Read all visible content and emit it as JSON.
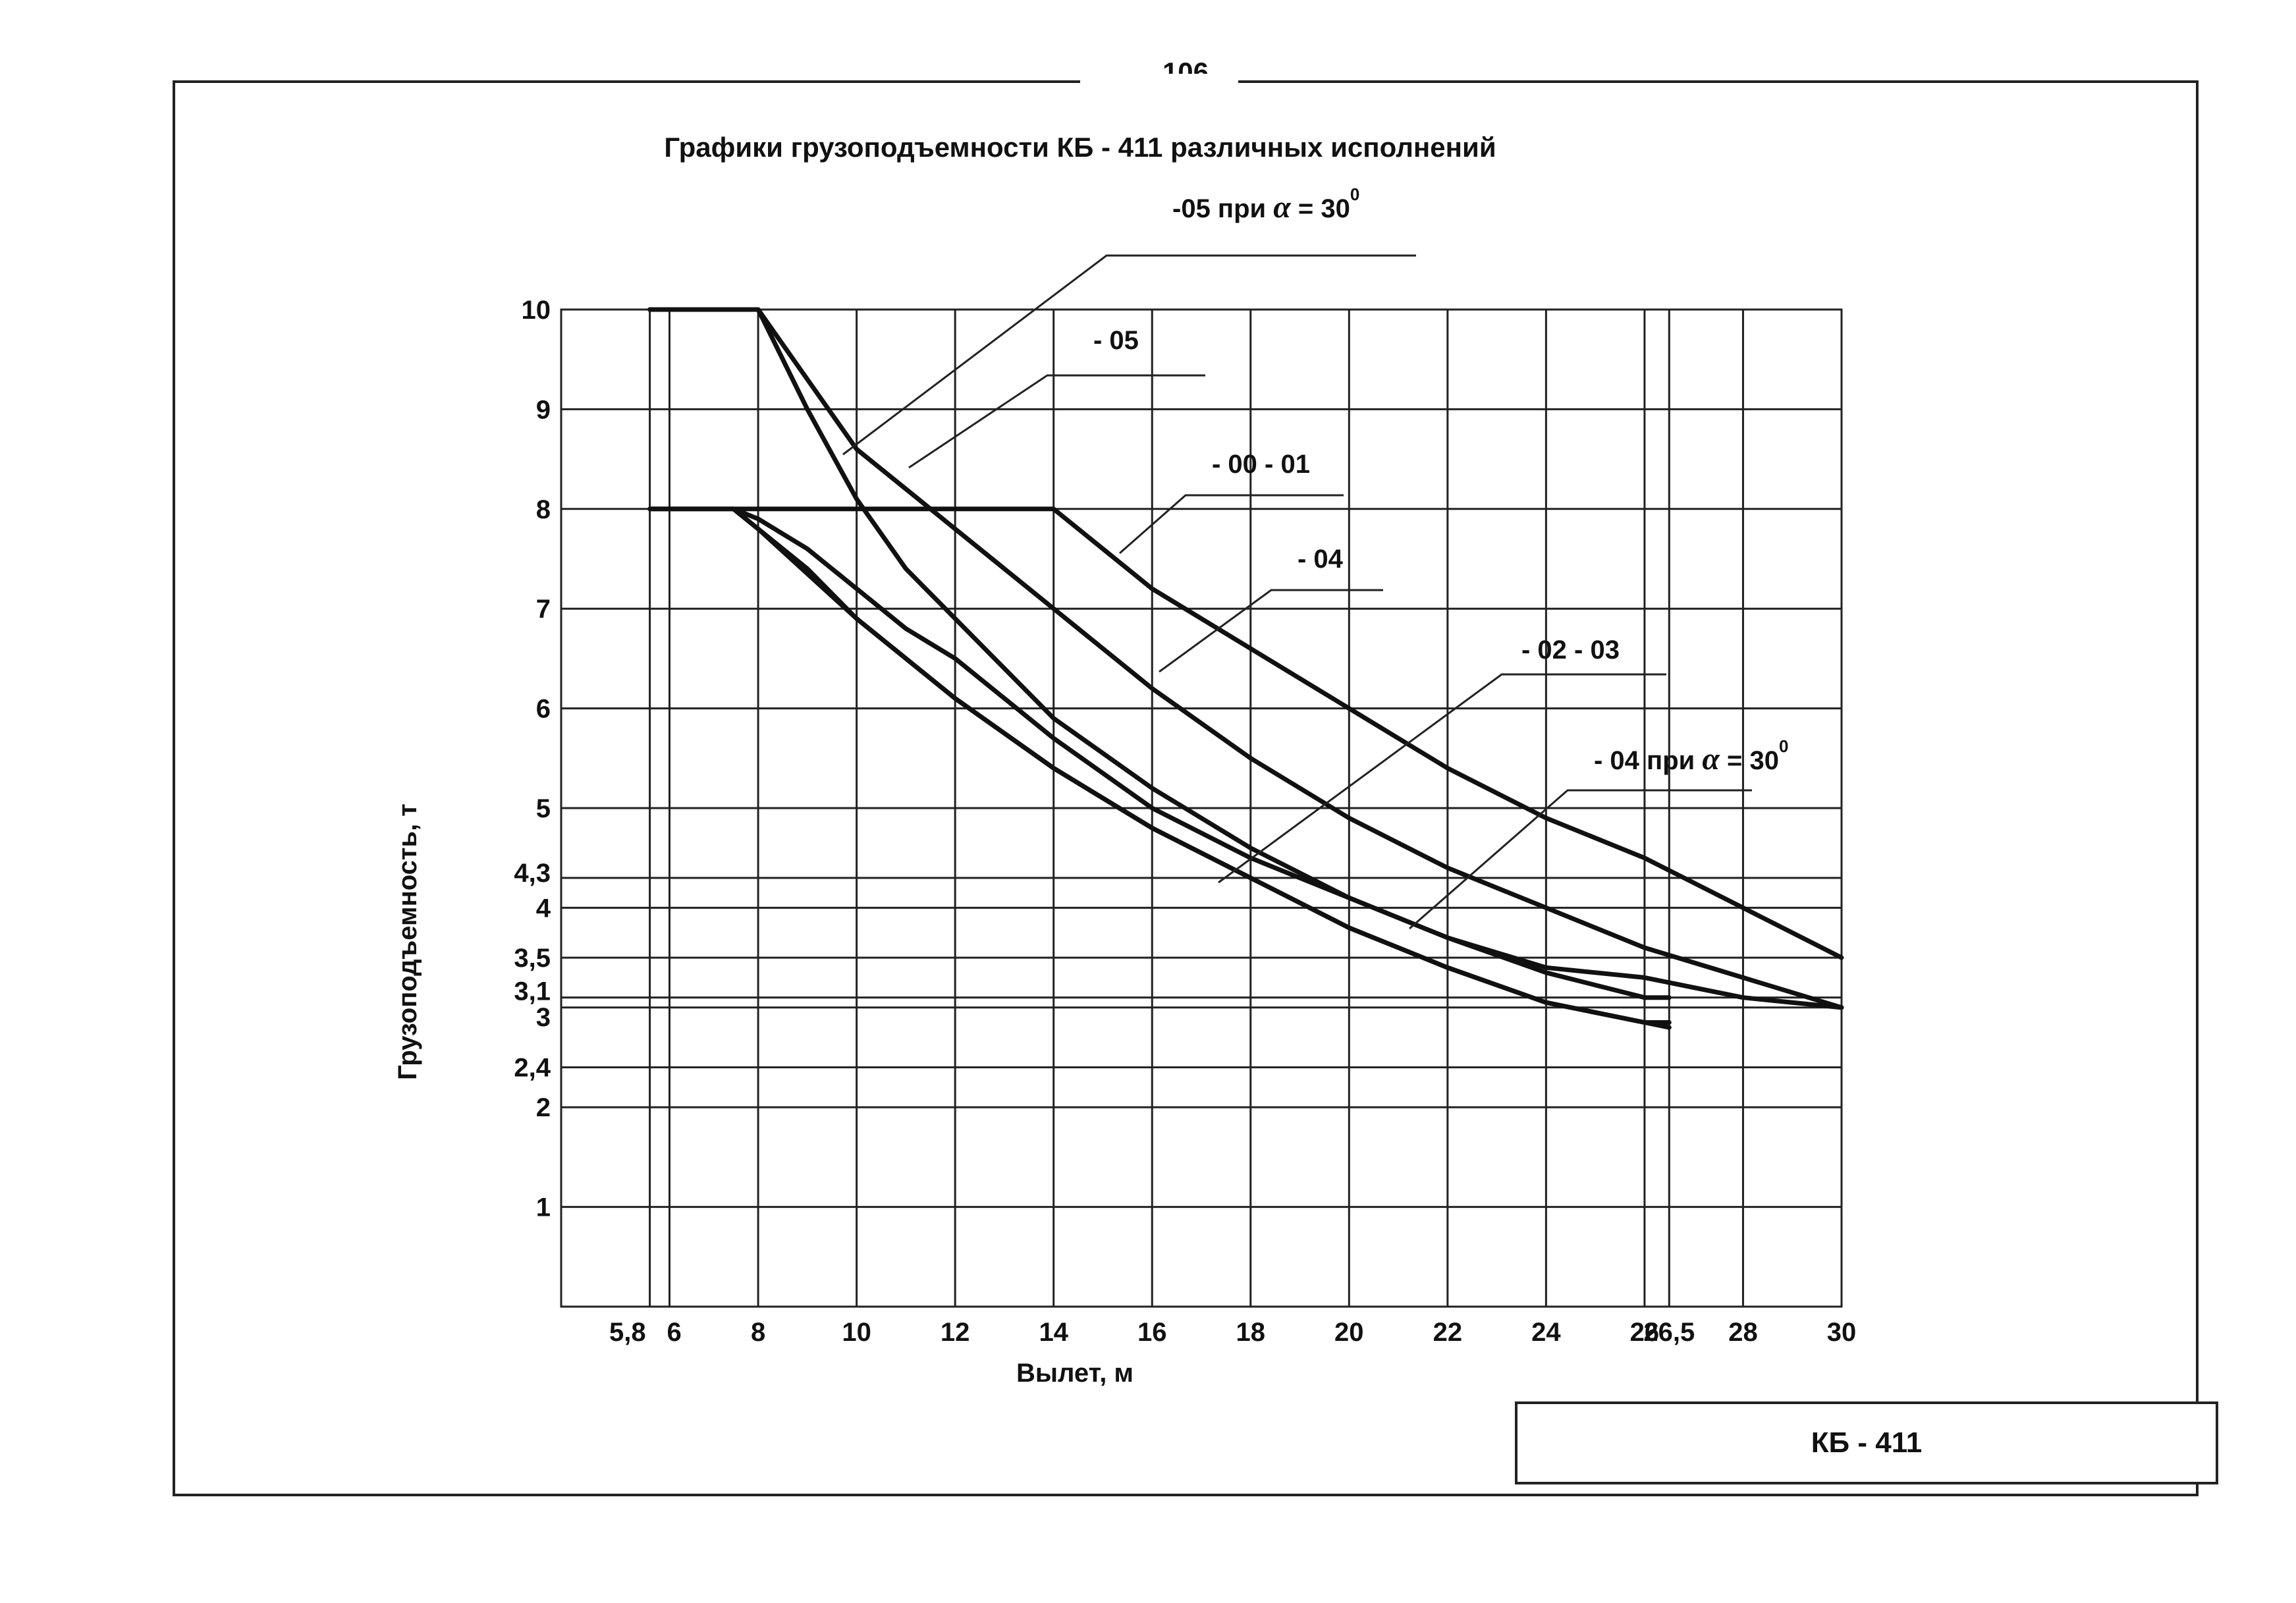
{
  "page": {
    "number": "106"
  },
  "stamp": {
    "label": "КБ - 411"
  },
  "chart_data": {
    "type": "line",
    "title": "Графики грузоподъемности КБ - 411 различных исполнений",
    "xlabel": "Вылет, м",
    "ylabel": "Грузоподъемность, т",
    "xlim": [
      4,
      30
    ],
    "ylim": [
      0,
      10
    ],
    "grid": true,
    "x_ticks": [
      {
        "value": 5.8,
        "label": "5,8"
      },
      {
        "value": 6.2,
        "label": "6"
      },
      {
        "value": 8,
        "label": "8"
      },
      {
        "value": 10,
        "label": "10"
      },
      {
        "value": 12,
        "label": "12"
      },
      {
        "value": 14,
        "label": "14"
      },
      {
        "value": 16,
        "label": "16"
      },
      {
        "value": 18,
        "label": "18"
      },
      {
        "value": 20,
        "label": "20"
      },
      {
        "value": 22,
        "label": "22"
      },
      {
        "value": 24,
        "label": "24"
      },
      {
        "value": 26,
        "label": "26"
      },
      {
        "value": 26.5,
        "label": "26,5"
      },
      {
        "value": 28,
        "label": "28"
      },
      {
        "value": 30,
        "label": "30"
      }
    ],
    "y_ticks": [
      {
        "value": 10,
        "label": "10"
      },
      {
        "value": 9,
        "label": "9"
      },
      {
        "value": 8,
        "label": "8"
      },
      {
        "value": 7,
        "label": "7"
      },
      {
        "value": 6,
        "label": "6"
      },
      {
        "value": 5,
        "label": "5"
      },
      {
        "value": 4.3,
        "label": "4,3"
      },
      {
        "value": 4,
        "label": "4"
      },
      {
        "value": 3.5,
        "label": "3,5"
      },
      {
        "value": 3.1,
        "label": "3,1"
      },
      {
        "value": 3,
        "label": "3"
      },
      {
        "value": 2.4,
        "label": "2,4"
      },
      {
        "value": 2,
        "label": "2"
      },
      {
        "value": 1,
        "label": "1"
      }
    ],
    "series": [
      {
        "name": "-05 при α = 30°",
        "label_parts": [
          "-05 при ",
          "α",
          " = ",
          "30",
          "0"
        ],
        "x": [
          5.8,
          8,
          8.5,
          9,
          10,
          11,
          12,
          14,
          16,
          18,
          20,
          22,
          24,
          26,
          26.5
        ],
        "y": [
          10,
          10,
          9.5,
          9.0,
          8.1,
          7.4,
          6.9,
          5.9,
          5.2,
          4.6,
          4.1,
          3.7,
          3.35,
          3.1,
          3.1
        ]
      },
      {
        "name": "- 05",
        "label_parts": [
          "- 05"
        ],
        "x": [
          5.8,
          8,
          9,
          10,
          11,
          12,
          14,
          16,
          18,
          20,
          22,
          24,
          26,
          28,
          30
        ],
        "y": [
          10,
          10,
          9.3,
          8.6,
          8.2,
          7.8,
          7.0,
          6.2,
          5.5,
          4.9,
          4.4,
          4.0,
          3.6,
          3.3,
          3.0
        ]
      },
      {
        "name": "- 00  - 01",
        "label_parts": [
          "- 00  - 01"
        ],
        "x": [
          5.8,
          14,
          15,
          16,
          18,
          20,
          22,
          24,
          26,
          28,
          30
        ],
        "y": [
          8,
          8,
          7.6,
          7.2,
          6.6,
          6.0,
          5.4,
          4.9,
          4.5,
          4.0,
          3.5
        ]
      },
      {
        "name": "- 04",
        "label_parts": [
          "- 04"
        ],
        "x": [
          5.8,
          7.5,
          8,
          9,
          10,
          11,
          12,
          14,
          16,
          18,
          20,
          22,
          24,
          26,
          28,
          30
        ],
        "y": [
          8,
          8,
          7.9,
          7.6,
          7.2,
          6.8,
          6.5,
          5.7,
          5.0,
          4.5,
          4.1,
          3.7,
          3.4,
          3.3,
          3.1,
          3.0
        ]
      },
      {
        "name": "- 02  - 03",
        "label_parts": [
          "- 02  - 03"
        ],
        "x": [
          7.5,
          8,
          9,
          10,
          11,
          12,
          14,
          16,
          18,
          20,
          22,
          24,
          26,
          26.5
        ],
        "y": [
          8,
          7.8,
          7.4,
          6.9,
          6.5,
          6.1,
          5.4,
          4.8,
          4.3,
          3.8,
          3.4,
          3.05,
          2.85,
          2.8
        ]
      },
      {
        "name": "- 04 при α = 30°",
        "label_parts": [
          "- 04 при ",
          "α",
          " = ",
          "30",
          "0"
        ],
        "x": [
          7.5,
          8,
          10,
          12,
          14,
          16,
          18,
          20,
          22,
          24,
          26,
          26.5
        ],
        "y": [
          8,
          7.8,
          6.9,
          6.1,
          5.4,
          4.8,
          4.3,
          3.8,
          3.4,
          3.05,
          2.85,
          2.85
        ]
      }
    ]
  }
}
